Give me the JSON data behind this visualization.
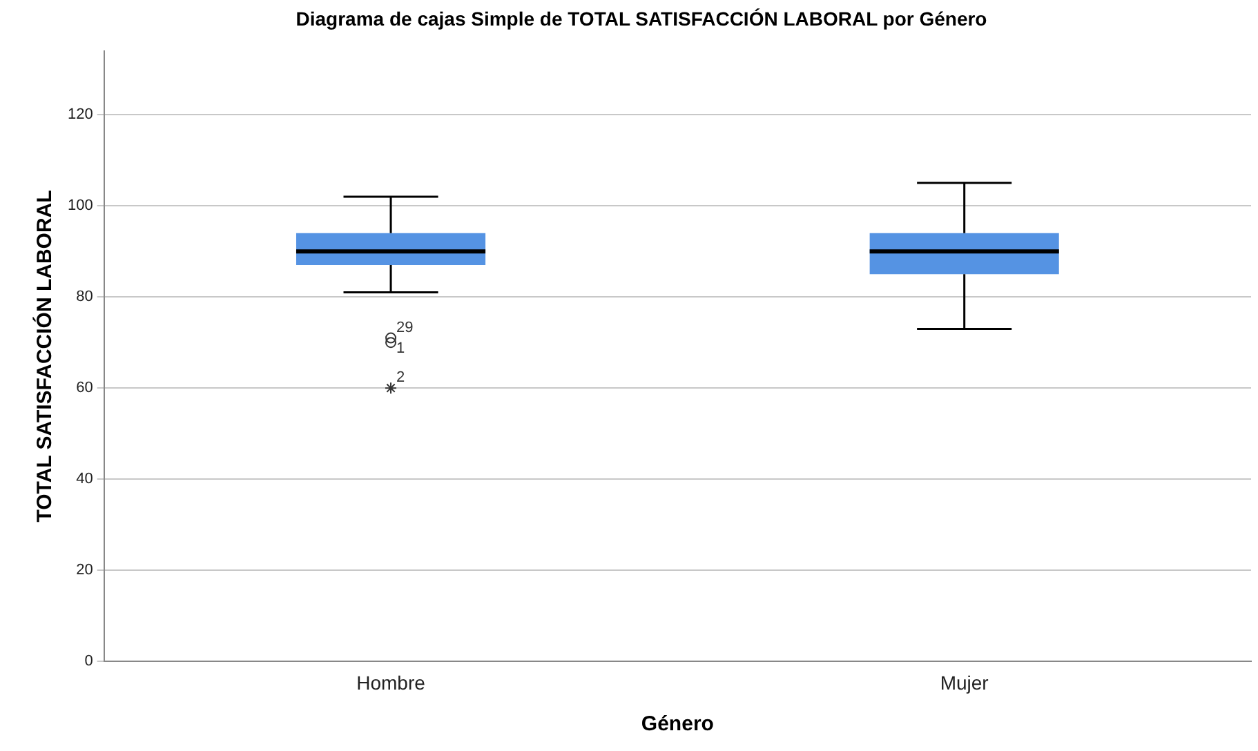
{
  "chart_data": {
    "type": "box",
    "title": "Diagrama de cajas Simple de TOTAL SATISFACCIÓN LABORAL por Género",
    "xlabel": "Género",
    "ylabel": "TOTAL SATISFACCIÓN LABORAL",
    "categories": [
      "Hombre",
      "Mujer"
    ],
    "boxes": [
      {
        "low": 81,
        "q1": 87,
        "median": 90,
        "q3": 94,
        "high": 102,
        "outliers": [
          71,
          70,
          60
        ]
      },
      {
        "low": 73,
        "q1": 85,
        "median": 90,
        "q3": 94,
        "high": 105
      }
    ],
    "color": "#5593e3",
    "ylim": [
      0,
      134
    ],
    "yticks": [
      0,
      20,
      40,
      60,
      80,
      100,
      120
    ],
    "grid": "y",
    "annotations": [
      "29",
      "1",
      "2"
    ],
    "legend": false
  }
}
